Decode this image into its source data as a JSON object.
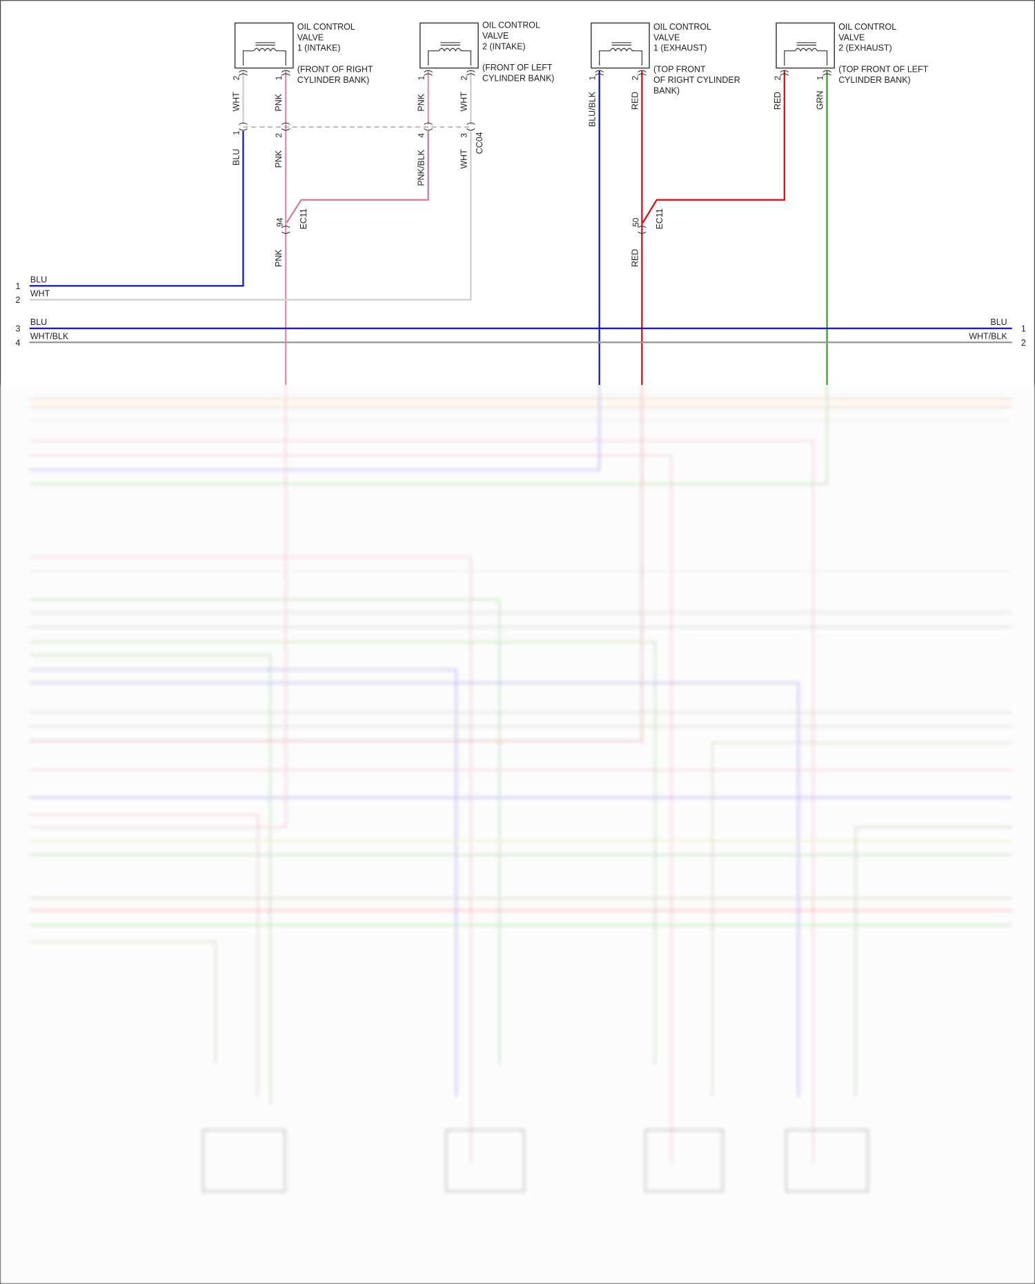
{
  "components": [
    {
      "title": [
        "OIL CONTROL",
        "VALVE",
        "1 (INTAKE)"
      ],
      "location": [
        "(FRONT OF RIGHT",
        "CYLINDER BANK)"
      ],
      "pins": [
        "2",
        "1"
      ],
      "wires": [
        "WHT",
        "PNK"
      ]
    },
    {
      "title": [
        "OIL CONTROL",
        "VALVE",
        "2 (INTAKE)"
      ],
      "location": [
        "(FRONT OF LEFT",
        "CYLINDER BANK)"
      ],
      "pins": [
        "1",
        "2"
      ],
      "wires": [
        "PNK",
        "WHT"
      ]
    },
    {
      "title": [
        "OIL CONTROL",
        "VALVE",
        "1 (EXHAUST)"
      ],
      "location": [
        "(TOP FRONT",
        "OF RIGHT CYLINDER",
        "BANK)"
      ],
      "pins": [
        "1",
        "2"
      ],
      "wires": [
        "BLU/BLK",
        "RED"
      ]
    },
    {
      "title": [
        "OIL CONTROL",
        "VALVE",
        "2 (EXHAUST)"
      ],
      "location": [
        "(TOP FRONT OF LEFT",
        "CYLINDER BANK)"
      ],
      "pins": [
        "2",
        "1"
      ],
      "wires": [
        "RED",
        "GRN"
      ]
    }
  ],
  "cc04": {
    "name": "CC04",
    "pins": [
      "1",
      "2",
      "4",
      "3"
    ],
    "wires": [
      "BLU",
      "PNK",
      "PNK/BLK",
      "WHT"
    ]
  },
  "ec11_a": {
    "name": "EC11",
    "pin": "94",
    "wire": "PNK"
  },
  "ec11_b": {
    "name": "EC11",
    "pin": "50",
    "wire": "RED"
  },
  "left_terminals": [
    {
      "pin": "1",
      "wire": "BLU"
    },
    {
      "pin": "2",
      "wire": "WHT"
    },
    {
      "pin": "3",
      "wire": "BLU"
    },
    {
      "pin": "4",
      "wire": "WHT/BLK"
    }
  ],
  "right_terminals": [
    {
      "pin": "1",
      "wire": "BLU"
    },
    {
      "pin": "2",
      "wire": "WHT/BLK"
    }
  ],
  "colors": {
    "BLU": "#1a1acc",
    "WHT": "#cfcfcf",
    "PNK": "#e58fa8",
    "RED": "#dd1111",
    "GRN": "#33aa22",
    "WHT/BLK": "#999999",
    "ORG": "#f2b070",
    "YEL": "#e8d97a",
    "BRN": "#b8a078"
  },
  "blurred_region_note_visible": false
}
